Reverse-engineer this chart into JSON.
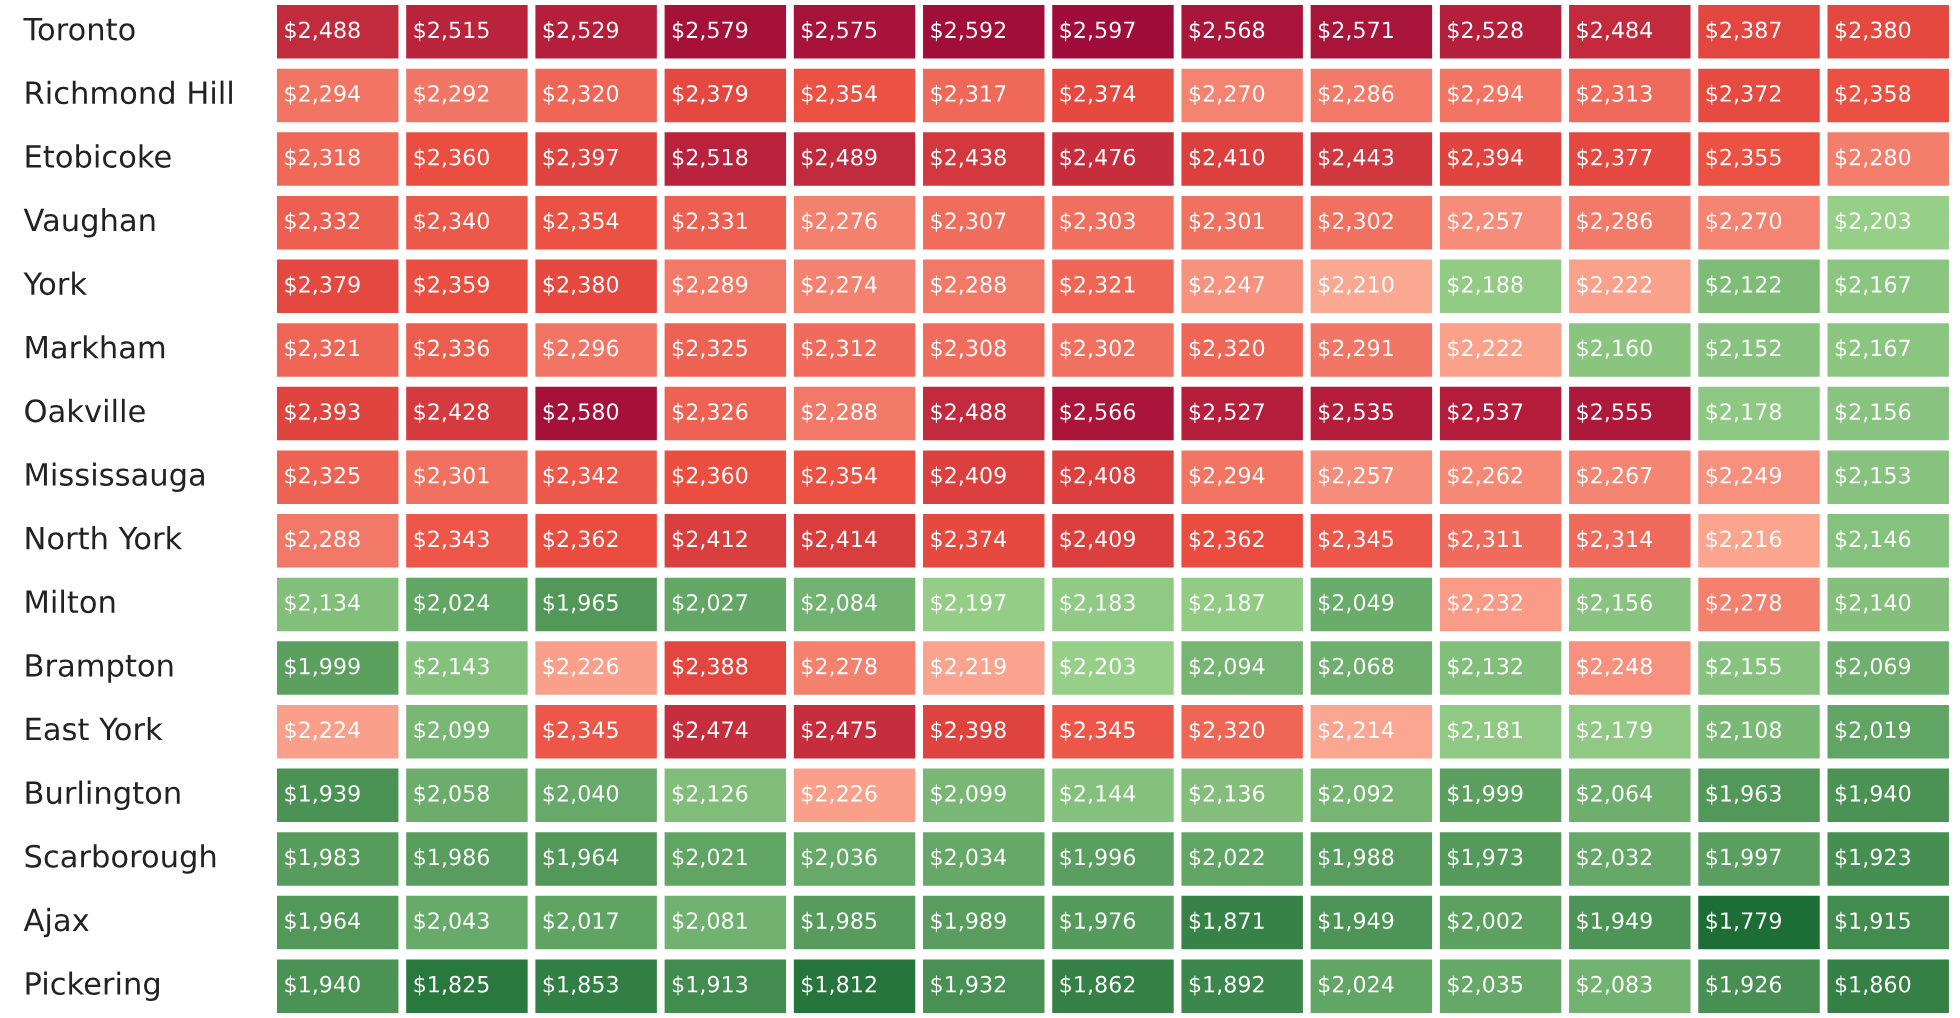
{
  "chart_data": {
    "type": "heatmap",
    "categories": [
      null,
      null,
      null,
      null,
      null,
      null,
      null,
      null,
      null,
      null,
      null,
      null,
      null
    ],
    "y_categories": [
      "Toronto",
      "Richmond Hill",
      "Etobicoke",
      "Vaughan",
      "York",
      "Markham",
      "Oakville",
      "Mississauga",
      "North York",
      "Milton",
      "Brampton",
      "East York",
      "Burlington",
      "Scarborough",
      "Ajax",
      "Pickering"
    ],
    "cells": [
      [
        2488,
        2515,
        2529,
        2579,
        2575,
        2592,
        2597,
        2568,
        2571,
        2528,
        2484,
        2387,
        2380
      ],
      [
        2294,
        2292,
        2320,
        2379,
        2354,
        2317,
        2374,
        2270,
        2286,
        2294,
        2313,
        2372,
        2358
      ],
      [
        2318,
        2360,
        2397,
        2518,
        2489,
        2438,
        2476,
        2410,
        2443,
        2394,
        2377,
        2355,
        2280
      ],
      [
        2332,
        2340,
        2354,
        2331,
        2276,
        2307,
        2303,
        2301,
        2302,
        2257,
        2286,
        2270,
        2203
      ],
      [
        2379,
        2359,
        2380,
        2289,
        2274,
        2288,
        2321,
        2247,
        2210,
        2188,
        2222,
        2122,
        2167
      ],
      [
        2321,
        2336,
        2296,
        2325,
        2312,
        2308,
        2302,
        2320,
        2291,
        2222,
        2160,
        2152,
        2167
      ],
      [
        2393,
        2428,
        2580,
        2326,
        2288,
        2488,
        2566,
        2527,
        2535,
        2537,
        2555,
        2178,
        2156
      ],
      [
        2325,
        2301,
        2342,
        2360,
        2354,
        2409,
        2408,
        2294,
        2257,
        2262,
        2267,
        2249,
        2153
      ],
      [
        2288,
        2343,
        2362,
        2412,
        2414,
        2374,
        2409,
        2362,
        2345,
        2311,
        2314,
        2216,
        2146
      ],
      [
        2134,
        2024,
        1965,
        2027,
        2084,
        2197,
        2183,
        2187,
        2049,
        2232,
        2156,
        2278,
        2140
      ],
      [
        1999,
        2143,
        2226,
        2388,
        2278,
        2219,
        2203,
        2094,
        2068,
        2132,
        2248,
        2155,
        2069
      ],
      [
        2224,
        2099,
        2345,
        2474,
        2475,
        2398,
        2345,
        2320,
        2214,
        2181,
        2179,
        2108,
        2019
      ],
      [
        1939,
        2058,
        2040,
        2126,
        2226,
        2099,
        2144,
        2136,
        2092,
        1999,
        2064,
        1963,
        1940
      ],
      [
        1983,
        1986,
        1964,
        2021,
        2036,
        2034,
        1996,
        2022,
        1988,
        1973,
        2032,
        1997,
        1923
      ],
      [
        1964,
        2043,
        2017,
        2081,
        1985,
        1989,
        1976,
        1871,
        1949,
        2002,
        1949,
        1779,
        1915
      ],
      [
        1940,
        1825,
        1853,
        1913,
        1812,
        1932,
        1862,
        1892,
        2024,
        2035,
        2083,
        1926,
        1860
      ]
    ],
    "cell_labels": [
      [
        "$2,488",
        "$2,515",
        "$2,529",
        "$2,579",
        "$2,575",
        "$2,592",
        "$2,597",
        "$2,568",
        "$2,571",
        "$2,528",
        "$2,484",
        "$2,387",
        "$2,380"
      ],
      [
        "$2,294",
        "$2,292",
        "$2,320",
        "$2,379",
        "$2,354",
        "$2,317",
        "$2,374",
        "$2,270",
        "$2,286",
        "$2,294",
        "$2,313",
        "$2,372",
        "$2,358"
      ],
      [
        "$2,318",
        "$2,360",
        "$2,397",
        "$2,518",
        "$2,489",
        "$2,438",
        "$2,476",
        "$2,410",
        "$2,443",
        "$2,394",
        "$2,377",
        "$2,355",
        "$2,280"
      ],
      [
        "$2,332",
        "$2,340",
        "$2,354",
        "$2,331",
        "$2,276",
        "$2,307",
        "$2,303",
        "$2,301",
        "$2,302",
        "$2,257",
        "$2,286",
        "$2,270",
        "$2,203"
      ],
      [
        "$2,379",
        "$2,359",
        "$2,380",
        "$2,289",
        "$2,274",
        "$2,288",
        "$2,321",
        "$2,247",
        "$2,210",
        "$2,188",
        "$2,222",
        "$2,122",
        "$2,167"
      ],
      [
        "$2,321",
        "$2,336",
        "$2,296",
        "$2,325",
        "$2,312",
        "$2,308",
        "$2,302",
        "$2,320",
        "$2,291",
        "$2,222",
        "$2,160",
        "$2,152",
        "$2,167"
      ],
      [
        "$2,393",
        "$2,428",
        "$2,580",
        "$2,326",
        "$2,288",
        "$2,488",
        "$2,566",
        "$2,527",
        "$2,535",
        "$2,537",
        "$2,555",
        "$2,178",
        "$2,156"
      ],
      [
        "$2,325",
        "$2,301",
        "$2,342",
        "$2,360",
        "$2,354",
        "$2,409",
        "$2,408",
        "$2,294",
        "$2,257",
        "$2,262",
        "$2,267",
        "$2,249",
        "$2,153"
      ],
      [
        "$2,288",
        "$2,343",
        "$2,362",
        "$2,412",
        "$2,414",
        "$2,374",
        "$2,409",
        "$2,362",
        "$2,345",
        "$2,311",
        "$2,314",
        "$2,216",
        "$2,146"
      ],
      [
        "$2,134",
        "$2,024",
        "$1,965",
        "$2,027",
        "$2,084",
        "$2,197",
        "$2,183",
        "$2,187",
        "$2,049",
        "$2,232",
        "$2,156",
        "$2,278",
        "$2,140"
      ],
      [
        "$1,999",
        "$2,143",
        "$2,226",
        "$2,388",
        "$2,278",
        "$2,219",
        "$2,203",
        "$2,094",
        "$2,068",
        "$2,132",
        "$2,248",
        "$2,155",
        "$2,069"
      ],
      [
        "$2,224",
        "$2,099",
        "$2,345",
        "$2,474",
        "$2,475",
        "$2,398",
        "$2,345",
        "$2,320",
        "$2,214",
        "$2,181",
        "$2,179",
        "$2,108",
        "$2,019"
      ],
      [
        "$1,939",
        "$2,058",
        "$2,040",
        "$2,126",
        "$2,226",
        "$2,099",
        "$2,144",
        "$2,136",
        "$2,092",
        "$1,999",
        "$2,064",
        "$1,963",
        "$1,940"
      ],
      [
        "$1,983",
        "$1,986",
        "$1,964",
        "$2,021",
        "$2,036",
        "$2,034",
        "$1,996",
        "$2,022",
        "$1,988",
        "$1,973",
        "$2,032",
        "$1,997",
        "$1,923"
      ],
      [
        "$1,964",
        "$2,043",
        "$2,017",
        "$2,081",
        "$1,985",
        "$1,989",
        "$1,976",
        "$1,871",
        "$1,949",
        "$2,002",
        "$1,949",
        "$1,779",
        "$1,915"
      ],
      [
        "$1,940",
        "$1,825",
        "$1,853",
        "$1,913",
        "$1,812",
        "$1,932",
        "$1,862",
        "$1,892",
        "$2,024",
        "$2,035",
        "$2,083",
        "$1,926",
        "$1,860"
      ]
    ]
  }
}
